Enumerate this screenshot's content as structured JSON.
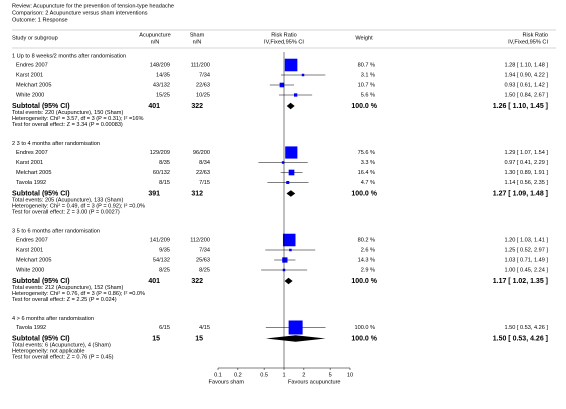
{
  "header": {
    "review": "Review: Acupuncture for the prevention of tension-type headache",
    "comparison": "Comparison: 2 Acupuncture versus sham interventions",
    "outcome": "Outcome: 1 Response"
  },
  "columns": {
    "study": "Study or subgroup",
    "acu": [
      "Acupuncture",
      "n/N"
    ],
    "sham": [
      "Sham",
      "n/N"
    ],
    "plot": [
      "Risk Ratio",
      "IV,Fixed,95% CI"
    ],
    "weight": "Weight",
    "rr": [
      "Risk Ratio",
      "IV,Fixed,95% CI"
    ]
  },
  "groups": [
    {
      "title": "1 Up to 8 weeks/2 months after randomisation",
      "studies": [
        {
          "name": "Endres 2007",
          "acu": "148/209",
          "sham": "111/200",
          "weight": 80.7,
          "weight_label": "80.7 %",
          "rr": 1.28,
          "lo": 1.1,
          "hi": 1.48,
          "ci_label": "1.28 [ 1.10, 1.48 ]"
        },
        {
          "name": "Karst 2001",
          "acu": "14/35",
          "sham": "7/34",
          "weight": 3.1,
          "weight_label": "3.1 %",
          "rr": 1.94,
          "lo": 0.9,
          "hi": 4.22,
          "ci_label": "1.94 [ 0.90, 4.22 ]"
        },
        {
          "name": "Melchart 2005",
          "acu": "43/132",
          "sham": "22/63",
          "weight": 10.7,
          "weight_label": "10.7 %",
          "rr": 0.93,
          "lo": 0.61,
          "hi": 1.42,
          "ci_label": "0.93 [ 0.61, 1.42 ]"
        },
        {
          "name": "White 2000",
          "acu": "15/25",
          "sham": "10/25",
          "weight": 5.6,
          "weight_label": "5.6 %",
          "rr": 1.5,
          "lo": 0.84,
          "hi": 2.67,
          "ci_label": "1.50 [ 0.84, 2.67 ]"
        }
      ],
      "subtotal": {
        "label": "Subtotal (95% CI)",
        "acu": "401",
        "sham": "322",
        "weight_label": "100.0 %",
        "rr": 1.26,
        "lo": 1.1,
        "hi": 1.45,
        "ci_label": "1.26 [ 1.10, 1.45 ]"
      },
      "notes": [
        "Total events: 220 (Acupuncture), 150 (Sham)",
        "Heterogeneity: Chi² = 3.57, df = 3 (P = 0.31); I² =16%",
        "Test for overall effect: Z = 3.34 (P = 0.00083)"
      ]
    },
    {
      "title": "2 3 to 4 months after randomisation",
      "studies": [
        {
          "name": "Endres 2007",
          "acu": "129/209",
          "sham": "96/200",
          "weight": 75.6,
          "weight_label": "75.6 %",
          "rr": 1.29,
          "lo": 1.07,
          "hi": 1.54,
          "ci_label": "1.29 [ 1.07, 1.54 ]"
        },
        {
          "name": "Karst 2001",
          "acu": "8/35",
          "sham": "8/34",
          "weight": 3.3,
          "weight_label": "3.3 %",
          "rr": 0.97,
          "lo": 0.41,
          "hi": 2.29,
          "ci_label": "0.97 [ 0.41, 2.29 ]"
        },
        {
          "name": "Melchart 2005",
          "acu": "60/132",
          "sham": "22/63",
          "weight": 16.4,
          "weight_label": "16.4 %",
          "rr": 1.3,
          "lo": 0.89,
          "hi": 1.91,
          "ci_label": "1.30 [ 0.89, 1.91 ]"
        },
        {
          "name": "Tavola 1992",
          "acu": "8/15",
          "sham": "7/15",
          "weight": 4.7,
          "weight_label": "4.7 %",
          "rr": 1.14,
          "lo": 0.56,
          "hi": 2.35,
          "ci_label": "1.14 [ 0.56, 2.35 ]"
        }
      ],
      "subtotal": {
        "label": "Subtotal (95% CI)",
        "acu": "391",
        "sham": "312",
        "weight_label": "100.0 %",
        "rr": 1.27,
        "lo": 1.09,
        "hi": 1.48,
        "ci_label": "1.27 [ 1.09, 1.48 ]"
      },
      "notes": [
        "Total events: 205 (Acupuncture), 133 (Sham)",
        "Heterogeneity: Chi² = 0.49, df = 3 (P = 0.92); I² =0.0%",
        "Test for overall effect: Z = 3.00 (P = 0.0027)"
      ]
    },
    {
      "title": "3 5 to 6 months after randomisation",
      "studies": [
        {
          "name": "Endres 2007",
          "acu": "141/209",
          "sham": "112/200",
          "weight": 80.2,
          "weight_label": "80.2 %",
          "rr": 1.2,
          "lo": 1.03,
          "hi": 1.41,
          "ci_label": "1.20 [ 1.03, 1.41 ]"
        },
        {
          "name": "Karst 2001",
          "acu": "9/35",
          "sham": "7/34",
          "weight": 2.6,
          "weight_label": "2.6 %",
          "rr": 1.25,
          "lo": 0.52,
          "hi": 2.97,
          "ci_label": "1.25 [ 0.52, 2.97 ]"
        },
        {
          "name": "Melchart 2005",
          "acu": "54/132",
          "sham": "25/63",
          "weight": 14.3,
          "weight_label": "14.3 %",
          "rr": 1.03,
          "lo": 0.71,
          "hi": 1.49,
          "ci_label": "1.03 [ 0.71, 1.49 ]"
        },
        {
          "name": "White 2000",
          "acu": "8/25",
          "sham": "8/25",
          "weight": 2.9,
          "weight_label": "2.9 %",
          "rr": 1.0,
          "lo": 0.45,
          "hi": 2.24,
          "ci_label": "1.00 [ 0.45, 2.24 ]"
        }
      ],
      "subtotal": {
        "label": "Subtotal (95% CI)",
        "acu": "401",
        "sham": "322",
        "weight_label": "100.0 %",
        "rr": 1.17,
        "lo": 1.02,
        "hi": 1.35,
        "ci_label": "1.17 [ 1.02, 1.35 ]"
      },
      "notes": [
        "Total events: 212 (Acupuncture), 152 (Sham)",
        "Heterogeneity: Chi² = 0.76, df = 3 (P = 0.86); I² =0.0%",
        "Test for overall effect: Z = 2.25 (P = 0.024)"
      ]
    },
    {
      "title": "4 > 6 months after randomisation",
      "studies": [
        {
          "name": "Tavola 1992",
          "acu": "6/15",
          "sham": "4/15",
          "weight": 100.0,
          "weight_label": "100.0 %",
          "rr": 1.5,
          "lo": 0.53,
          "hi": 4.26,
          "ci_label": "1.50 [ 0.53, 4.26 ]"
        }
      ],
      "subtotal": {
        "label": "Subtotal (95% CI)",
        "acu": "15",
        "sham": "15",
        "weight_label": "100.0 %",
        "rr": 1.5,
        "lo": 0.53,
        "hi": 4.26,
        "ci_label": "1.50 [ 0.53, 4.26 ]"
      },
      "notes": [
        "Total events: 6 (Acupuncture), 4 (Sham)",
        "Heterogeneity: not applicable",
        "Test for overall effect: Z = 0.76 (P = 0.45)"
      ]
    }
  ],
  "axis": {
    "scale": "log",
    "xlim": [
      0.1,
      10
    ],
    "ticks": [
      0.1,
      0.2,
      0.5,
      1,
      2,
      5,
      10
    ],
    "left_label": "Favours sham",
    "right_label": "Favours acupuncture"
  },
  "colors": {
    "square": "#0000ff",
    "diamond": "#000000"
  }
}
